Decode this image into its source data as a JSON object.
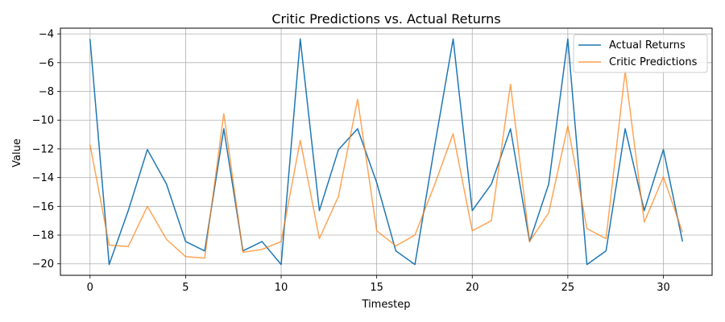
{
  "chart_data": {
    "type": "line",
    "title": "Critic Predictions vs. Actual Returns",
    "xlabel": "Timestep",
    "ylabel": "Value",
    "xlim": [
      -1.55,
      32.55
    ],
    "ylim": [
      -20.8,
      -3.6
    ],
    "xticks": [
      0,
      5,
      10,
      15,
      20,
      25,
      30
    ],
    "yticks": [
      -20,
      -18,
      -16,
      -14,
      -12,
      -10,
      -8,
      -6,
      -4
    ],
    "grid": true,
    "legend_position": "top-right",
    "x": [
      0,
      1,
      2,
      3,
      4,
      5,
      6,
      7,
      8,
      9,
      10,
      11,
      12,
      13,
      14,
      15,
      16,
      17,
      18,
      19,
      20,
      21,
      22,
      23,
      24,
      25,
      26,
      27,
      28,
      29,
      30,
      31
    ],
    "series": [
      {
        "name": "Actual Returns",
        "color": "#1f77b4",
        "values": [
          -4.35,
          -20.05,
          -16.3,
          -12.05,
          -14.45,
          -18.45,
          -19.1,
          -10.6,
          -19.1,
          -18.45,
          -20.05,
          -4.35,
          -16.3,
          -12.05,
          -10.6,
          -14.35,
          -19.1,
          -20.05,
          -12.05,
          -4.35,
          -16.3,
          -14.45,
          -10.6,
          -18.45,
          -14.45,
          -4.35,
          -20.05,
          -19.1,
          -10.6,
          -16.3,
          -12.05,
          -18.45
        ]
      },
      {
        "name": "Critic Predictions",
        "color": "#ff7f0e",
        "values": [
          -11.7,
          -18.7,
          -18.8,
          -16.0,
          -18.3,
          -19.5,
          -19.6,
          -9.55,
          -19.2,
          -19.0,
          -18.45,
          -11.4,
          -18.25,
          -15.3,
          -8.55,
          -17.7,
          -18.75,
          -18.0,
          -14.6,
          -10.95,
          -17.7,
          -17.0,
          -7.5,
          -18.45,
          -16.45,
          -10.4,
          -17.55,
          -18.25,
          -6.6,
          -17.1,
          -13.95,
          -17.8
        ]
      }
    ]
  }
}
